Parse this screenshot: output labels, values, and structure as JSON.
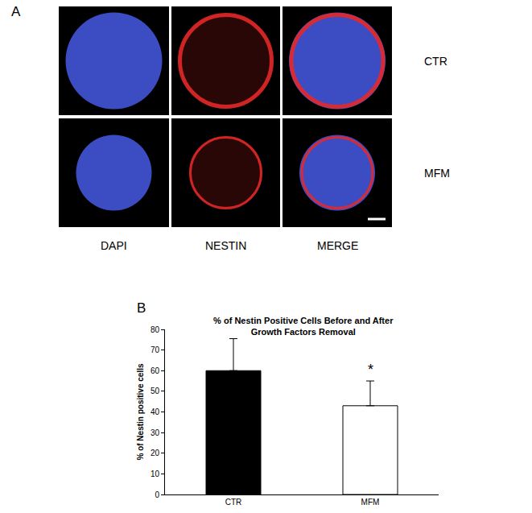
{
  "figure": {
    "panel_labels": [
      "A",
      "B"
    ],
    "image_columns": [
      "DAPI",
      "NESTIN",
      "MERGE"
    ],
    "image_rows": [
      "CTR",
      "MFM"
    ]
  },
  "chart_data": {
    "type": "bar",
    "title": "% of Nestin Positive Cells Before and After\nGrowth Factors Removal",
    "y_label": "% of Nestin positive cells",
    "categories": [
      "CTR",
      "MFM"
    ],
    "values": [
      60,
      43
    ],
    "error_upper": [
      15.5,
      12
    ],
    "colors": [
      "#000000",
      "#ffffff"
    ],
    "ylim": [
      0,
      80
    ],
    "yticks": [
      0,
      10,
      20,
      30,
      40,
      50,
      60,
      70,
      80
    ],
    "grid": false,
    "annotations": [
      {
        "text": "*",
        "category": "MFM"
      }
    ]
  }
}
